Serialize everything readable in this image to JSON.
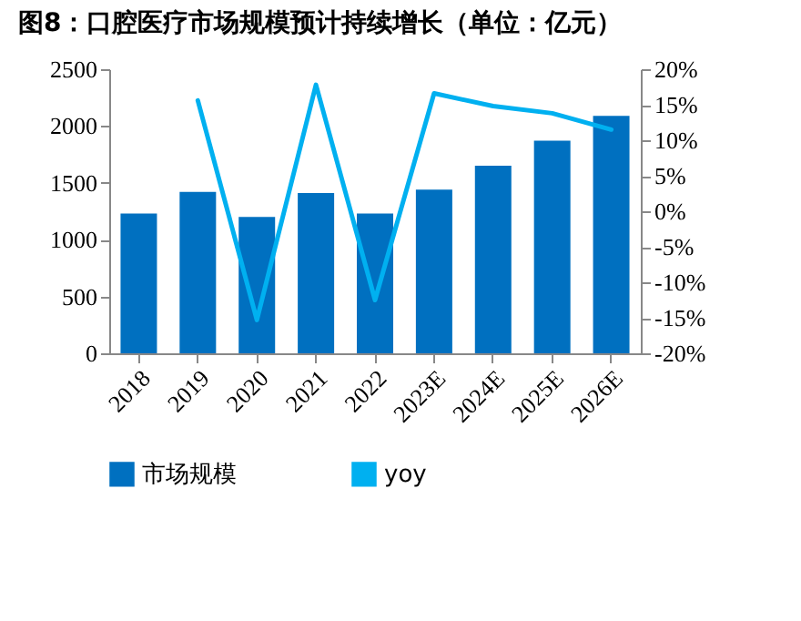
{
  "chart_data": {
    "type": "bar",
    "title": "图8：口腔医疗市场规模预计持续增长（单位：亿元）",
    "categories": [
      "2018",
      "2019",
      "2020",
      "2021",
      "2022",
      "2023E",
      "2024E",
      "2025E",
      "2026E"
    ],
    "series": [
      {
        "name": "市场规模",
        "color": "#0070c0",
        "values": [
          1230,
          1420,
          1200,
          1410,
          1230,
          1440,
          1650,
          1870,
          2090
        ]
      },
      {
        "name": "yoy",
        "type": "line",
        "axis": "y2",
        "color": "#00b0f0",
        "values": [
          null,
          15.6,
          -15.3,
          17.8,
          -12.5,
          16.6,
          14.8,
          13.8,
          11.5
        ]
      }
    ],
    "ylim": [
      0,
      2500
    ],
    "yticks": [
      0,
      500,
      1000,
      1500,
      2000,
      2500
    ],
    "y2lim": [
      -20,
      20
    ],
    "y2ticks": [
      {
        "value": -20,
        "label": "-20%"
      },
      {
        "value": -15,
        "label": "-15%"
      },
      {
        "value": -10,
        "label": "-10%"
      },
      {
        "value": -5,
        "label": "-5%"
      },
      {
        "value": 0,
        "label": "0%"
      },
      {
        "value": 5,
        "label": "5%"
      },
      {
        "value": 10,
        "label": "10%"
      },
      {
        "value": 15,
        "label": "15%"
      },
      {
        "value": 20,
        "label": "20%"
      }
    ],
    "grid": false,
    "legend": "bottom"
  }
}
